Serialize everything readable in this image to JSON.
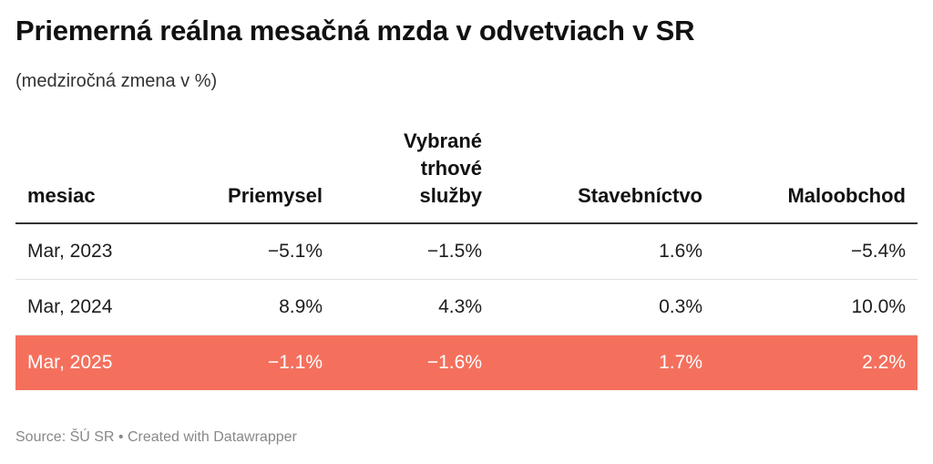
{
  "header": {
    "title": "Priemerná reálna mesačná mzda v odvetviach v SR",
    "subtitle": "(medziročná zmena v %)"
  },
  "chart_data": {
    "type": "table",
    "columns": [
      "mesiac",
      "Priemysel",
      "Vybrané trhové služby",
      "Stavebníctvo",
      "Maloobchod"
    ],
    "column_header_lines": [
      [
        "mesiac"
      ],
      [
        "Priemysel"
      ],
      [
        "Vybrané",
        "trhové",
        "služby"
      ],
      [
        "Stavebníctvo"
      ],
      [
        "Maloobchod"
      ]
    ],
    "rows": [
      [
        "Mar, 2023",
        "−5.1%",
        "−1.5%",
        "1.6%",
        "−5.4%"
      ],
      [
        "Mar, 2024",
        "8.9%",
        "4.3%",
        "0.3%",
        "10.0%"
      ],
      [
        "Mar, 2025",
        "−1.1%",
        "−1.6%",
        "1.7%",
        "2.2%"
      ]
    ],
    "highlighted_row": 2,
    "highlight_color": "#f4705d"
  },
  "footer": {
    "source": "Source: ŠÚ SR • Created with Datawrapper"
  }
}
